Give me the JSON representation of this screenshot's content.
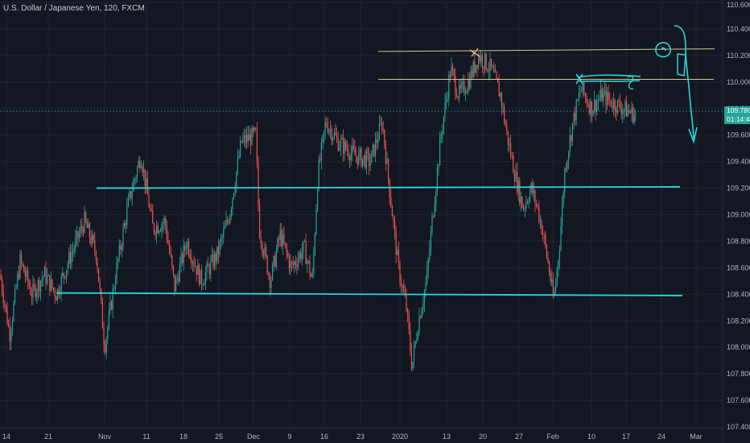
{
  "title": "U.S. Dollar / Japanese Yen, 120, FXCM",
  "colors": {
    "background": "#131722",
    "grid": "#1f2433",
    "up": "#26a69a",
    "down": "#ef5350",
    "support": "#2ad6d6",
    "resistance": "#d8c48a",
    "axis_text": "#b2b5be"
  },
  "chart_data": {
    "type": "candlestick",
    "title": "U.S. Dollar / Japanese Yen, 120, FXCM",
    "ylim": [
      107.4,
      110.6
    ],
    "y_ticks": [
      "110.600",
      "110.400",
      "110.200",
      "110.000",
      "109.800",
      "109.600",
      "109.400",
      "109.200",
      "109.000",
      "108.800",
      "108.600",
      "108.400",
      "108.200",
      "108.000",
      "107.800",
      "107.600",
      "107.400"
    ],
    "x_ticks": [
      "14",
      "21",
      "Nov",
      "11",
      "18",
      "25",
      "Dec",
      "9",
      "16",
      "23",
      "2020",
      "13",
      "20",
      "27",
      "Feb",
      "10",
      "17",
      "24",
      "Mar"
    ],
    "last_price": "109.780",
    "countdown": "01:14:44",
    "price_path": [
      [
        0,
        108.55
      ],
      [
        12,
        108.1
      ],
      [
        25,
        108.65
      ],
      [
        40,
        108.4
      ],
      [
        55,
        108.55
      ],
      [
        70,
        108.4
      ],
      [
        85,
        108.65
      ],
      [
        105,
        108.95
      ],
      [
        120,
        108.7
      ],
      [
        130,
        108.0
      ],
      [
        145,
        108.6
      ],
      [
        160,
        109.1
      ],
      [
        175,
        109.45
      ],
      [
        190,
        108.9
      ],
      [
        205,
        108.95
      ],
      [
        217,
        108.45
      ],
      [
        232,
        108.8
      ],
      [
        250,
        108.5
      ],
      [
        270,
        108.7
      ],
      [
        285,
        109.0
      ],
      [
        300,
        109.55
      ],
      [
        318,
        109.6
      ],
      [
        322,
        108.9
      ],
      [
        336,
        108.5
      ],
      [
        348,
        108.85
      ],
      [
        362,
        108.6
      ],
      [
        378,
        108.75
      ],
      [
        388,
        108.5
      ],
      [
        395,
        109.3
      ],
      [
        405,
        109.7
      ],
      [
        420,
        109.55
      ],
      [
        440,
        109.45
      ],
      [
        460,
        109.4
      ],
      [
        475,
        109.7
      ],
      [
        483,
        109.25
      ],
      [
        495,
        108.6
      ],
      [
        505,
        108.3
      ],
      [
        512,
        107.85
      ],
      [
        520,
        108.2
      ],
      [
        530,
        108.5
      ],
      [
        537,
        108.95
      ],
      [
        548,
        109.6
      ],
      [
        560,
        110.1
      ],
      [
        570,
        109.9
      ],
      [
        582,
        110.0
      ],
      [
        595,
        110.2
      ],
      [
        610,
        110.1
      ],
      [
        622,
        109.9
      ],
      [
        630,
        109.6
      ],
      [
        640,
        109.3
      ],
      [
        650,
        109.05
      ],
      [
        660,
        109.2
      ],
      [
        668,
        109.05
      ],
      [
        675,
        108.85
      ],
      [
        682,
        108.6
      ],
      [
        688,
        108.35
      ],
      [
        695,
        108.75
      ],
      [
        702,
        109.35
      ],
      [
        712,
        109.7
      ],
      [
        722,
        109.95
      ],
      [
        735,
        109.8
      ],
      [
        748,
        109.9
      ],
      [
        760,
        109.85
      ],
      [
        775,
        109.8
      ],
      [
        790,
        109.75
      ]
    ],
    "support_lines": [
      {
        "name": "support-upper",
        "x": [
          120,
          845
        ],
        "y": [
          109.2,
          109.21
        ]
      },
      {
        "name": "support-lower",
        "x": [
          70,
          848
        ],
        "y": [
          108.41,
          108.39
        ]
      }
    ],
    "resistance_lines": [
      {
        "name": "resistance-upper",
        "x": [
          470,
          888
        ],
        "y": [
          110.23,
          110.25
        ]
      },
      {
        "name": "resistance-lower",
        "x": [
          470,
          887
        ],
        "y": [
          110.02,
          110.02
        ]
      }
    ]
  }
}
